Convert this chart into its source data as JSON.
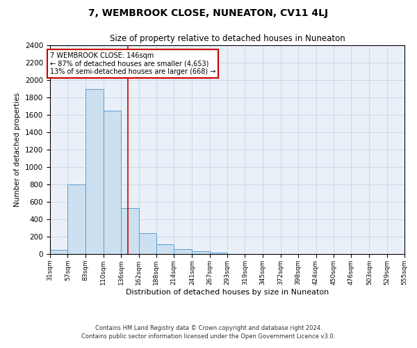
{
  "title": "7, WEMBROOK CLOSE, NUNEATON, CV11 4LJ",
  "subtitle": "Size of property relative to detached houses in Nuneaton",
  "xlabel": "Distribution of detached houses by size in Nuneaton",
  "ylabel": "Number of detached properties",
  "bin_edges": [
    31,
    57,
    83,
    110,
    136,
    162,
    188,
    214,
    241,
    267,
    293,
    319,
    345,
    372,
    398,
    424,
    450,
    476,
    503,
    529,
    555
  ],
  "bar_heights": [
    50,
    800,
    1900,
    1650,
    530,
    240,
    110,
    55,
    30,
    20,
    0,
    0,
    0,
    0,
    0,
    0,
    0,
    0,
    0,
    0
  ],
  "bar_color": "#cce0f0",
  "bar_edge_color": "#5a9fd4",
  "red_line_x": 146,
  "ylim": [
    0,
    2400
  ],
  "yticks": [
    0,
    200,
    400,
    600,
    800,
    1000,
    1200,
    1400,
    1600,
    1800,
    2000,
    2200,
    2400
  ],
  "annotation_line1": "7 WEMBROOK CLOSE: 146sqm",
  "annotation_line2": "← 87% of detached houses are smaller (4,653)",
  "annotation_line3": "13% of semi-detached houses are larger (668) →",
  "annotation_box_color": "#cc0000",
  "grid_color": "#c8d4e8",
  "background_color": "#eaf0f8",
  "footer_line1": "Contains HM Land Registry data © Crown copyright and database right 2024.",
  "footer_line2": "Contains public sector information licensed under the Open Government Licence v3.0."
}
